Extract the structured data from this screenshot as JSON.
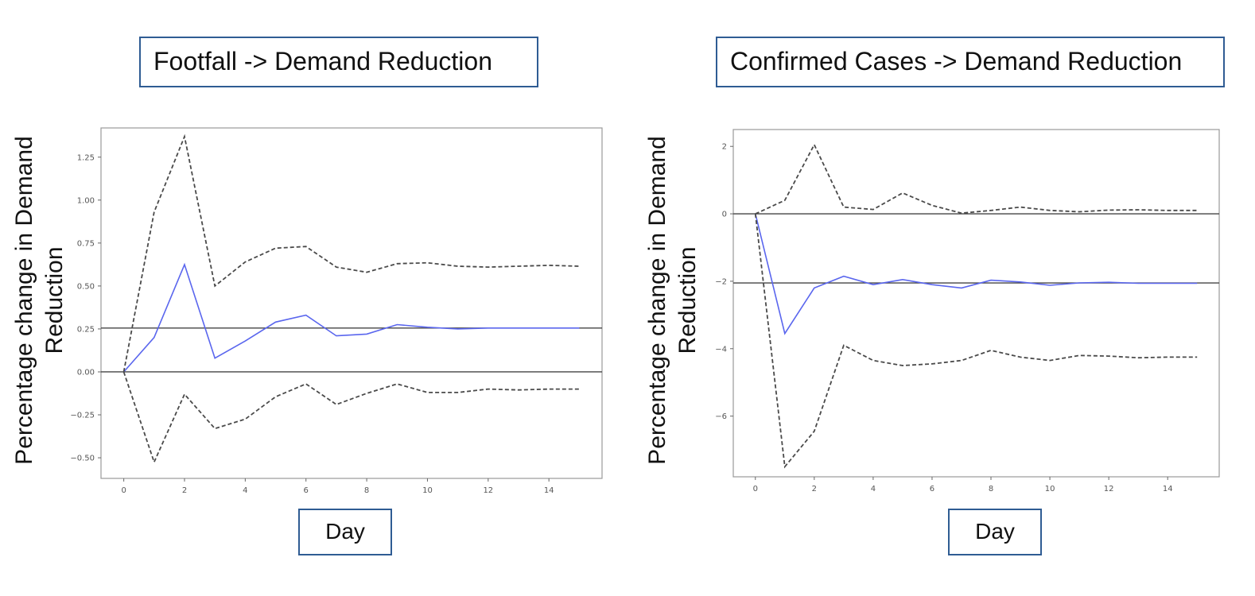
{
  "panels": [
    {
      "title": "Footfall -> Demand Reduction",
      "ylabel_line1": "Percentage change in Demand",
      "ylabel_line2": "Reduction",
      "xlabel": "Day"
    },
    {
      "title": "Confirmed Cases -> Demand Reduction",
      "ylabel_line1": "Percentage change in Demand",
      "ylabel_line2": "Reduction",
      "xlabel": "Day"
    }
  ],
  "colors": {
    "response": "#5a66ee",
    "band": "#4a4a4a",
    "reference": "#444444",
    "box_border": "#2f5c93"
  },
  "chart_data": [
    {
      "type": "line",
      "title": "",
      "xlabel": "Day",
      "ylabel": "Percentage change in Demand Reduction",
      "xlim": [
        -0.75,
        15.75
      ],
      "ylim": [
        -0.62,
        1.42
      ],
      "xticks": [
        0,
        2,
        4,
        6,
        8,
        10,
        12,
        14
      ],
      "xtick_labels": [
        "0",
        "2",
        "4",
        "6",
        "8",
        "10",
        "12",
        "14"
      ],
      "yticks": [
        -0.5,
        -0.25,
        0,
        0.25,
        0.5,
        0.75,
        1.0,
        1.25
      ],
      "ytick_labels": [
        "−0.50",
        "−0.25",
        "0.00",
        "0.25",
        "0.50",
        "0.75",
        "1.00",
        "1.25"
      ],
      "hlines": [
        0,
        0.255
      ],
      "x": [
        0,
        1,
        2,
        3,
        4,
        5,
        6,
        7,
        8,
        9,
        10,
        11,
        12,
        13,
        14,
        15
      ],
      "series": [
        {
          "style": "solid",
          "values": [
            0,
            0.2,
            0.625,
            0.08,
            0.18,
            0.29,
            0.33,
            0.21,
            0.22,
            0.275,
            0.26,
            0.25,
            0.255,
            0.255,
            0.255,
            0.255
          ]
        },
        {
          "style": "dashed",
          "values": [
            0,
            0.93,
            1.37,
            0.5,
            0.64,
            0.72,
            0.73,
            0.61,
            0.58,
            0.63,
            0.635,
            0.615,
            0.61,
            0.615,
            0.62,
            0.615
          ]
        },
        {
          "style": "dashed",
          "values": [
            0,
            -0.525,
            -0.13,
            -0.33,
            -0.275,
            -0.145,
            -0.07,
            -0.19,
            -0.125,
            -0.07,
            -0.12,
            -0.12,
            -0.1,
            -0.105,
            -0.1,
            -0.1
          ]
        }
      ]
    },
    {
      "type": "line",
      "title": "",
      "xlabel": "Day",
      "ylabel": "Percentage change in Demand Reduction",
      "xlim": [
        -0.75,
        15.75
      ],
      "ylim": [
        -7.8,
        2.5
      ],
      "xticks": [
        0,
        2,
        4,
        6,
        8,
        10,
        12,
        14
      ],
      "xtick_labels": [
        "0",
        "2",
        "4",
        "6",
        "8",
        "10",
        "12",
        "14"
      ],
      "yticks": [
        -6,
        -4,
        -2,
        0,
        2
      ],
      "ytick_labels": [
        "−6",
        "−4",
        "−2",
        "0",
        "2"
      ],
      "hlines": [
        0,
        -2.05
      ],
      "x": [
        0,
        1,
        2,
        3,
        4,
        5,
        6,
        7,
        8,
        9,
        10,
        11,
        12,
        13,
        14,
        15
      ],
      "series": [
        {
          "style": "solid",
          "values": [
            0,
            -3.55,
            -2.2,
            -1.85,
            -2.1,
            -1.95,
            -2.1,
            -2.2,
            -1.97,
            -2.02,
            -2.12,
            -2.05,
            -2.03,
            -2.06,
            -2.06,
            -2.06
          ]
        },
        {
          "style": "dashed",
          "values": [
            0,
            0.4,
            2.05,
            0.2,
            0.13,
            0.62,
            0.25,
            0.02,
            0.1,
            0.2,
            0.1,
            0.06,
            0.11,
            0.12,
            0.1,
            0.1
          ]
        },
        {
          "style": "dashed",
          "values": [
            0,
            -7.5,
            -6.45,
            -3.9,
            -4.35,
            -4.5,
            -4.45,
            -4.35,
            -4.05,
            -4.25,
            -4.35,
            -4.2,
            -4.22,
            -4.27,
            -4.25,
            -4.25
          ]
        }
      ]
    }
  ]
}
